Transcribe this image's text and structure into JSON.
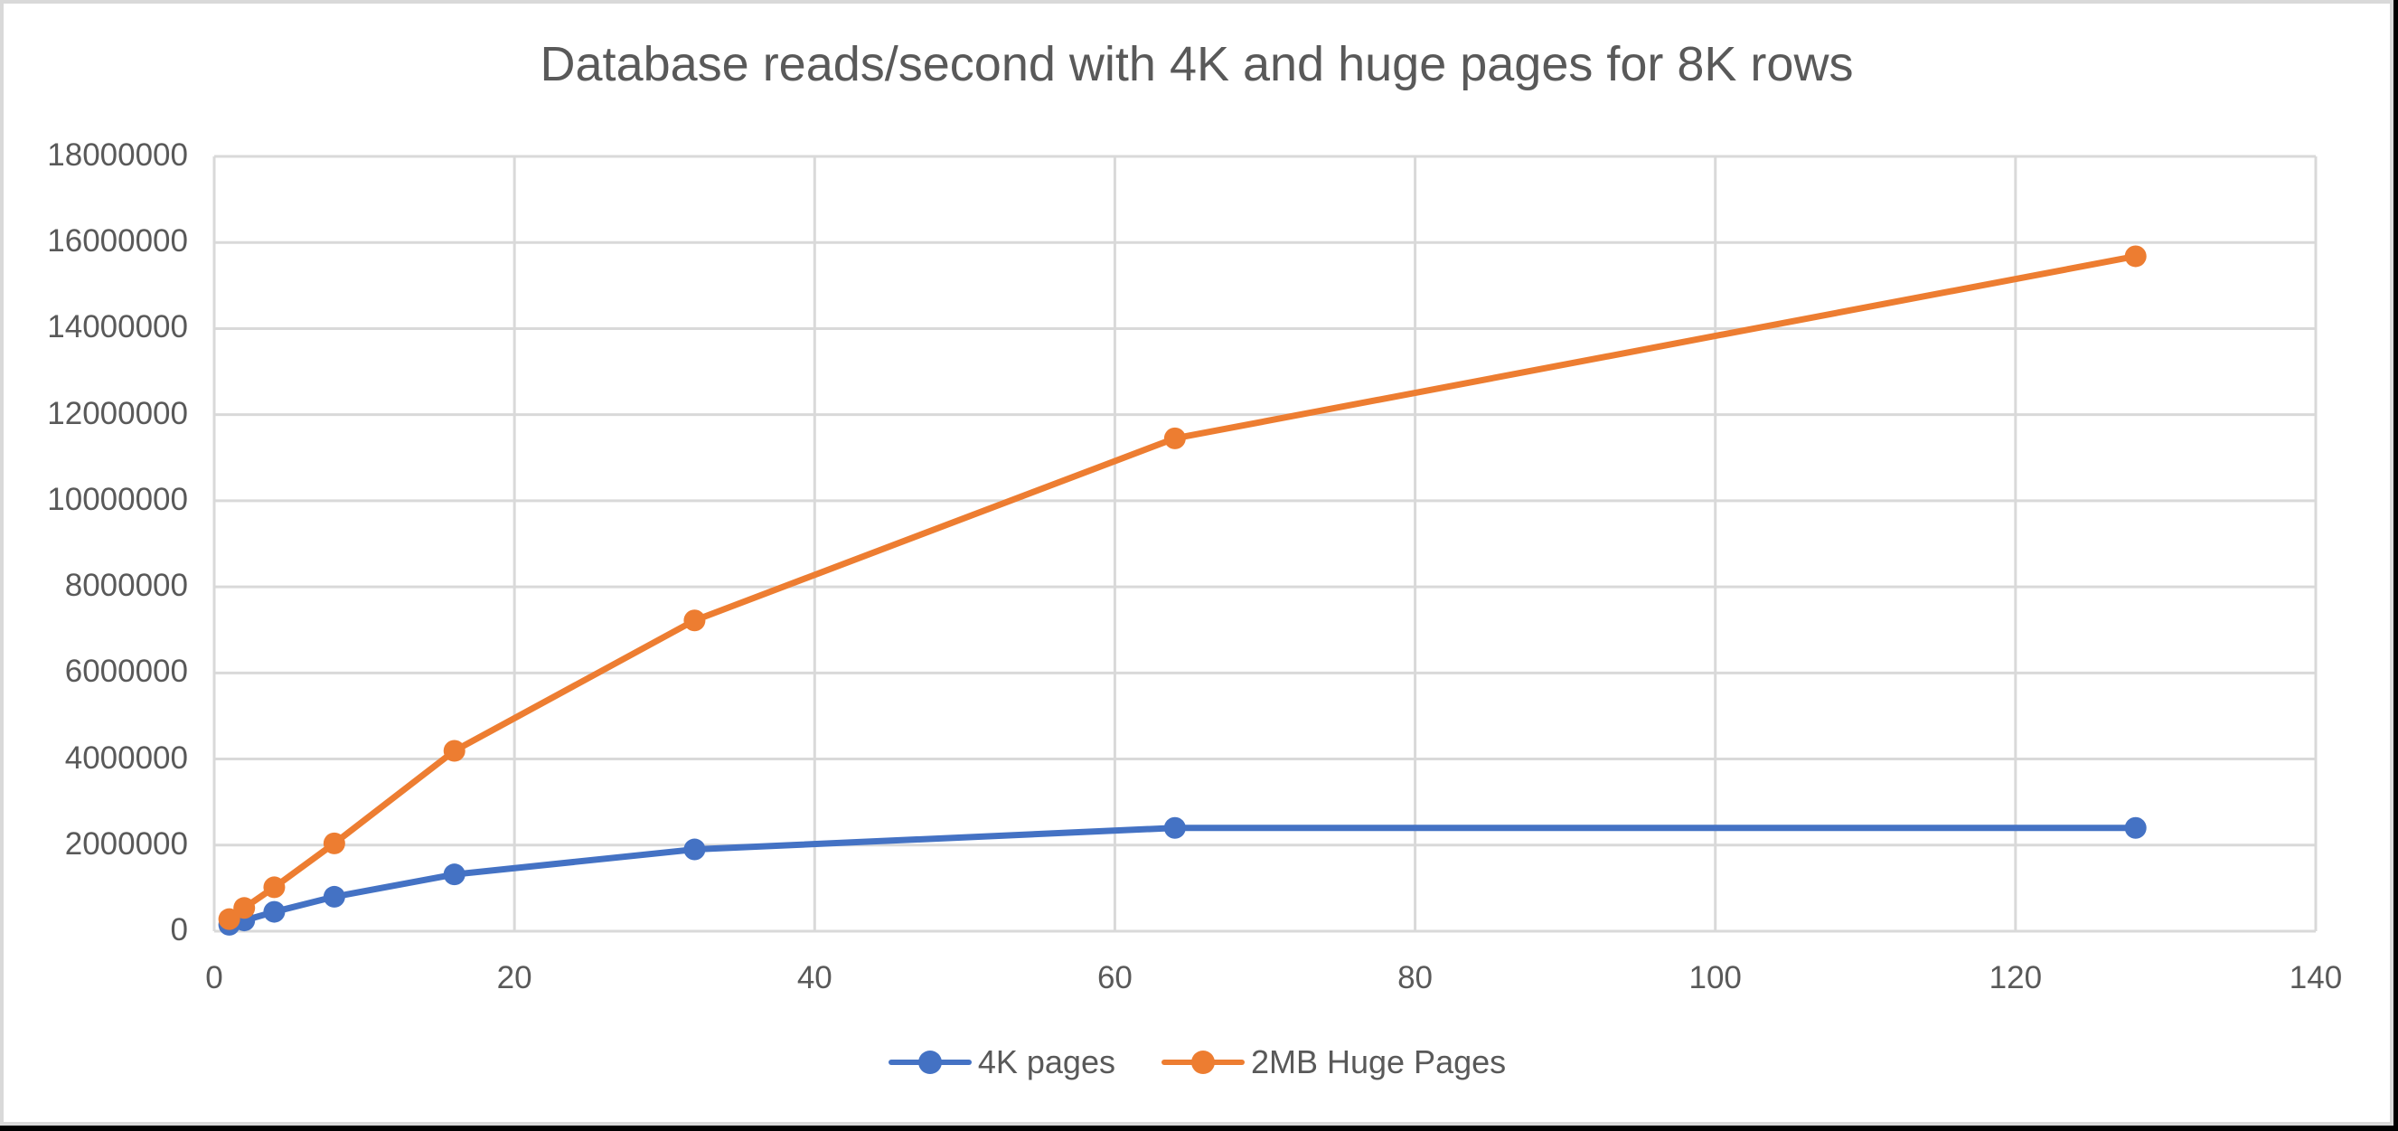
{
  "chart_data": {
    "type": "scatter",
    "subtype": "scatter-with-straight-lines-and-markers",
    "title": "Database reads/second with 4K and huge pages for 8K rows",
    "xlabel": "",
    "ylabel": "",
    "xlim": [
      0,
      140
    ],
    "ylim": [
      0,
      18000000
    ],
    "x_ticks": [
      "0",
      "20",
      "40",
      "60",
      "80",
      "100",
      "120",
      "140"
    ],
    "y_ticks": [
      "0",
      "2000000",
      "4000000",
      "6000000",
      "8000000",
      "10000000",
      "12000000",
      "14000000",
      "16000000",
      "18000000"
    ],
    "grid": true,
    "legend_position": "bottom",
    "x": [
      1,
      2,
      4,
      8,
      16,
      32,
      64,
      128
    ],
    "series": [
      {
        "name": "4K pages",
        "color": "#4472C4",
        "values": [
          150000,
          250000,
          450000,
          800000,
          1320000,
          1900000,
          2400000,
          2400000
        ]
      },
      {
        "name": "2MB Huge Pages",
        "color": "#ED7D31",
        "values": [
          280000,
          540000,
          1020000,
          2040000,
          4190000,
          7220000,
          11450000,
          15680000
        ]
      }
    ]
  },
  "legend": {
    "items": [
      {
        "label": "4K pages",
        "color": "#4472C4"
      },
      {
        "label": "2MB Huge Pages",
        "color": "#ED7D31"
      }
    ]
  }
}
